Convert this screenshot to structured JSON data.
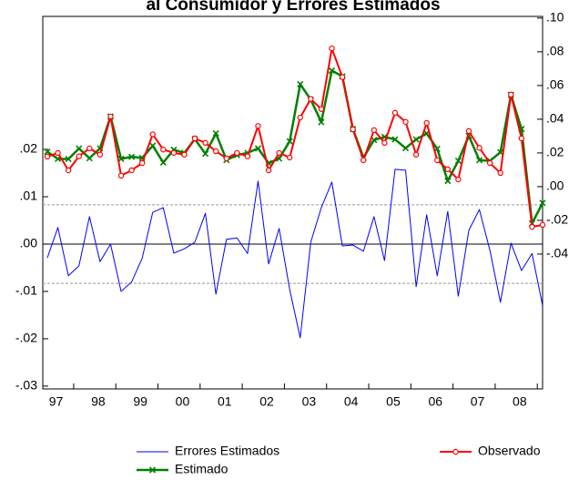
{
  "chart_data": {
    "type": "line",
    "title": "al Consumidor y Errores Estimados",
    "categories": [
      null,
      "97",
      null,
      null,
      null,
      "98",
      null,
      null,
      null,
      "99",
      null,
      null,
      null,
      "00",
      null,
      null,
      null,
      "01",
      null,
      null,
      null,
      "02",
      null,
      null,
      null,
      "03",
      null,
      null,
      null,
      "04",
      null,
      null,
      null,
      "05",
      null,
      null,
      null,
      "06",
      null,
      null,
      null,
      "07",
      null,
      null,
      null,
      "08",
      null,
      null
    ],
    "ylim": [
      -0.0306,
      0.0481
    ],
    "yticks": [
      {
        "value": -0.03,
        "label": "-.03"
      },
      {
        "value": -0.02,
        "label": "-.02"
      },
      {
        "value": -0.01,
        "label": "-.01"
      },
      {
        "value": 0,
        "label": ".00"
      },
      {
        "value": 0.01,
        "label": ".01"
      },
      {
        "value": 0.02,
        "label": ".02"
      }
    ],
    "y2lim": [
      -0.12,
      0.101
    ],
    "y2ticks": [
      {
        "value": -0.04,
        "label": "-.04"
      },
      {
        "value": -0.02,
        "label": "-.02"
      },
      {
        "value": 0,
        "label": ".00"
      },
      {
        "value": 0.02,
        "label": ".02"
      },
      {
        "value": 0.04,
        "label": ".04"
      },
      {
        "value": 0.06,
        "label": ".06"
      },
      {
        "value": 0.08,
        "label": ".08"
      },
      {
        "value": 0.1,
        "label": ".10"
      }
    ],
    "reference_lines": [
      -0.0083,
      0.0083
    ],
    "legend": "bottom",
    "series": [
      {
        "name": "Errores Estimados",
        "color": "#0000ff",
        "values": [
          -0.0029,
          0.0035,
          -0.0067,
          -0.0046,
          0.0058,
          -0.0037,
          0.0,
          -0.01,
          -0.008,
          -0.003,
          0.0067,
          0.0077,
          -0.0019,
          -0.001,
          0.0004,
          0.0065,
          -0.0106,
          0.001,
          0.0013,
          -0.002,
          0.0133,
          -0.0042,
          0.0033,
          -0.0096,
          -0.0198,
          0.0004,
          0.0077,
          0.0131,
          -0.0004,
          -0.0002,
          -0.0015,
          0.0058,
          -0.0035,
          0.0158,
          0.0156,
          -0.009,
          0.0062,
          -0.0067,
          0.0069,
          -0.011,
          0.0029,
          0.0073,
          -0.0013,
          -0.0123,
          0.0002,
          -0.0056,
          -0.002,
          -0.013
        ]
      },
      {
        "name": "Observado",
        "color": "#ff0000",
        "marker": "circle",
        "axis": "y2",
        "values": [
          0.0178,
          0.02,
          0.0097,
          0.018,
          0.0227,
          0.019,
          0.0416,
          0.0065,
          0.0097,
          0.014,
          0.031,
          0.022,
          0.02,
          0.019,
          0.0286,
          0.026,
          0.021,
          0.0168,
          0.02,
          0.018,
          0.036,
          0.0097,
          0.02,
          0.0173,
          0.041,
          0.052,
          0.046,
          0.082,
          0.065,
          0.034,
          0.0157,
          0.0335,
          0.026,
          0.0438,
          0.0384,
          0.019,
          0.0378,
          0.0157,
          0.0103,
          0.0043,
          0.033,
          0.023,
          0.014,
          0.0081,
          0.0546,
          0.0286,
          -0.0238,
          -0.0227
        ]
      },
      {
        "name": "Estimado",
        "color": "#008000",
        "marker": "x",
        "axis": "y2",
        "values": [
          0.0207,
          0.0165,
          0.0164,
          0.0226,
          0.0169,
          0.0227,
          0.0416,
          0.0165,
          0.0177,
          0.017,
          0.0243,
          0.0143,
          0.0219,
          0.02,
          0.0282,
          0.0195,
          0.0316,
          0.0158,
          0.0187,
          0.02,
          0.0227,
          0.0139,
          0.0167,
          0.0269,
          0.0608,
          0.0516,
          0.0383,
          0.0689,
          0.0654,
          0.0342,
          0.0172,
          0.0277,
          0.0295,
          0.028,
          0.0228,
          0.028,
          0.0316,
          0.0224,
          0.0034,
          0.0153,
          0.0301,
          0.0157,
          0.0153,
          0.0204,
          0.0544,
          0.0342,
          -0.0218,
          -0.0097
        ]
      }
    ]
  }
}
